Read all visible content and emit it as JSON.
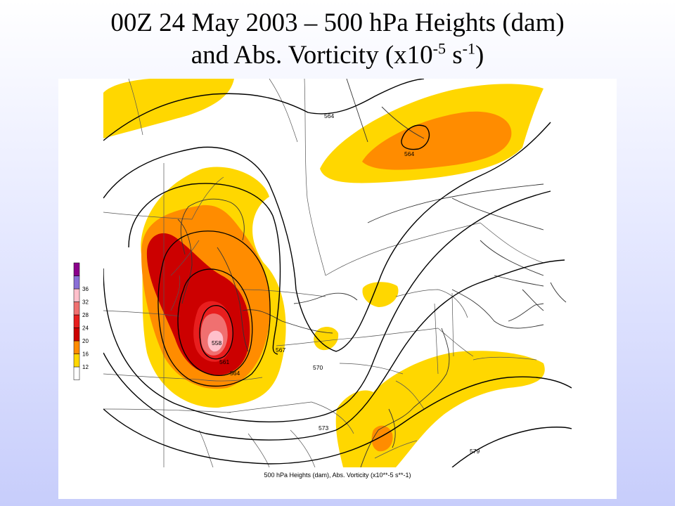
{
  "slide": {
    "title_line1": "00Z 24 May 2003 – 500 hPa Heights (dam)",
    "title_line2_pre": "and Abs. Vorticity (x10",
    "title_exp1": "-5",
    "title_mid": " s",
    "title_exp2": "-1",
    "title_post": ")"
  },
  "map": {
    "caption": "500 hPa Heights (dam), Abs. Vorticity (x10**-5 s**-1)",
    "contour_labels": [
      "564",
      "564",
      "567",
      "570",
      "573",
      "579",
      "558",
      "561",
      "564"
    ],
    "colorbar": {
      "ticks": [
        "12",
        "16",
        "20",
        "24",
        "28",
        "32",
        "36"
      ],
      "bins": [
        {
          "min": 12,
          "color": "#FFD700"
        },
        {
          "min": 16,
          "color": "#FF8C00"
        },
        {
          "min": 20,
          "color": "#CC0000"
        },
        {
          "min": 24,
          "color": "#E81E1E"
        },
        {
          "min": 28,
          "color": "#F07070"
        },
        {
          "min": 32,
          "color": "#FFC0CB"
        },
        {
          "min": 36,
          "color": "#8A6FD6"
        },
        {
          "min": 40,
          "color": "#8B008B"
        }
      ]
    }
  }
}
